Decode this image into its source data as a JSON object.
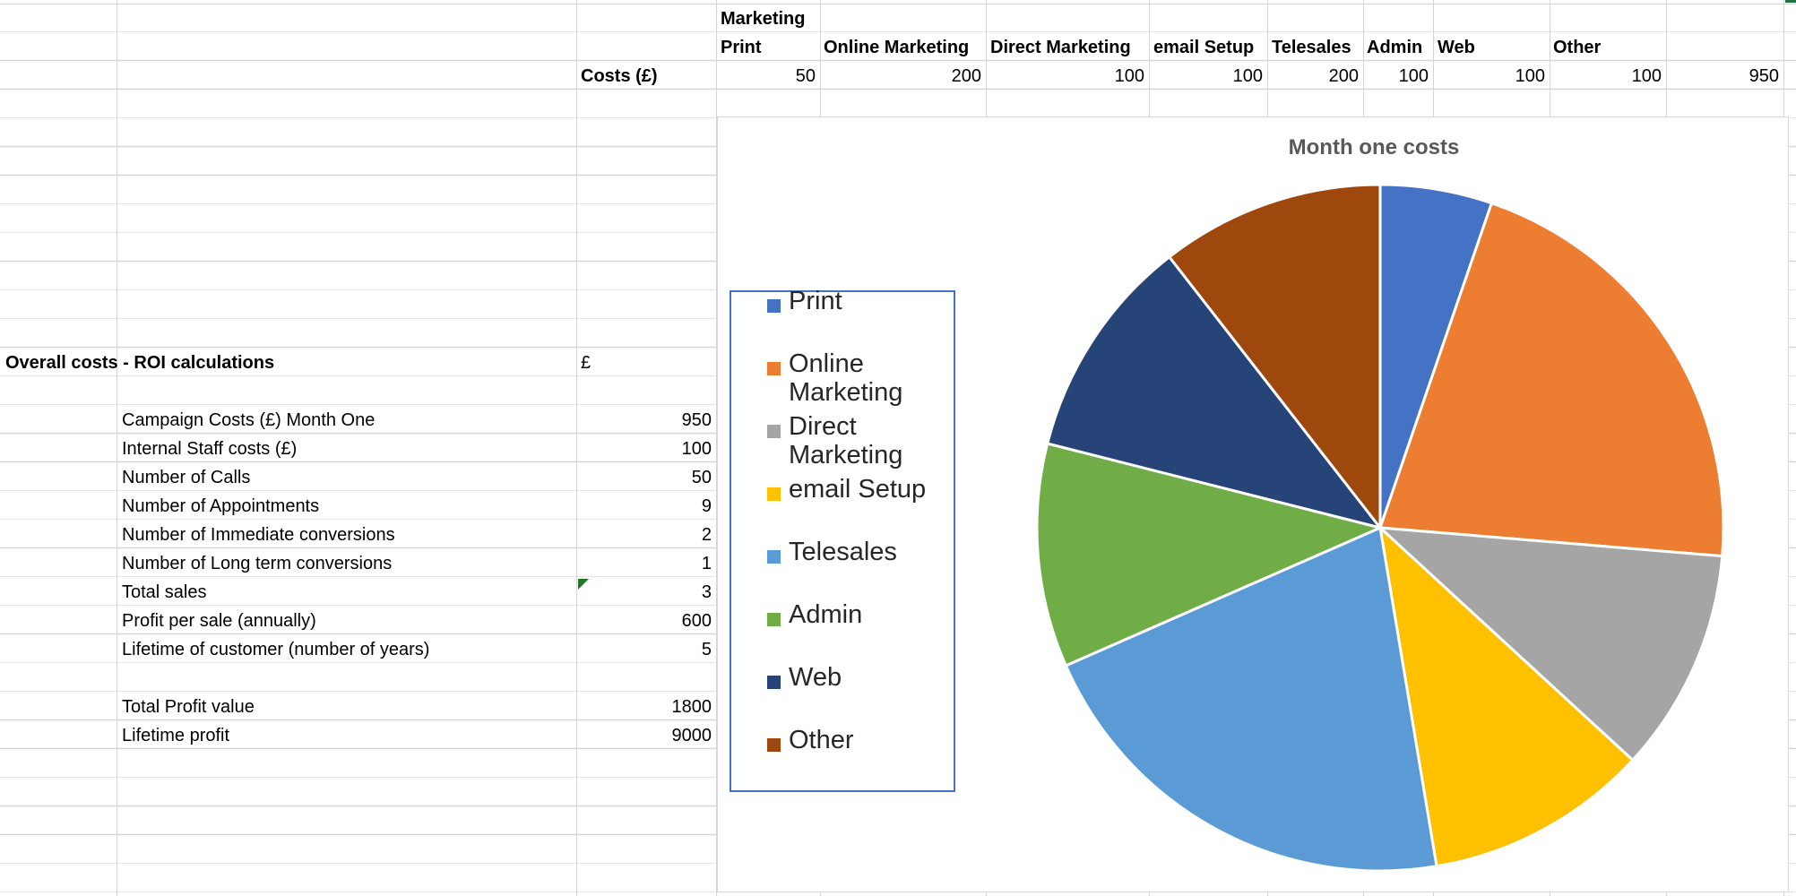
{
  "header": {
    "marketing": "Marketing",
    "categories": [
      "Print",
      "Online Marketing",
      "Direct Marketing",
      "email Setup",
      "Telesales",
      "Admin",
      "Web",
      "Other"
    ],
    "costs_label": "Costs (£)",
    "cost_values": [
      "50",
      "200",
      "100",
      "100",
      "200",
      "100",
      "100",
      "100"
    ],
    "total": "950"
  },
  "roi": {
    "title": "Overall costs - ROI calculations",
    "currency": "£",
    "rows": [
      {
        "label": "Campaign Costs (£) Month One",
        "value": "950"
      },
      {
        "label": "Internal Staff costs (£)",
        "value": "100"
      },
      {
        "label": "Number of Calls",
        "value": "50"
      },
      {
        "label": "Number of Appointments",
        "value": "9"
      },
      {
        "label": "Number of Immediate conversions",
        "value": "2"
      },
      {
        "label": "Number of Long term conversions",
        "value": "1"
      },
      {
        "label": "Total sales",
        "value": "3"
      },
      {
        "label": "Profit per sale (annually)",
        "value": "600"
      },
      {
        "label": "Lifetime of customer (number of years)",
        "value": "5"
      }
    ],
    "totals": [
      {
        "label": "Total Profit value",
        "value": "1800"
      },
      {
        "label": "Lifetime profit",
        "value": "9000"
      }
    ]
  },
  "chart_data": {
    "type": "pie",
    "title": "Month one costs",
    "categories": [
      "Print",
      "Online Marketing",
      "Direct Marketing",
      "email Setup",
      "Telesales",
      "Admin",
      "Web",
      "Other"
    ],
    "values": [
      50,
      200,
      100,
      100,
      200,
      100,
      100,
      100
    ],
    "colors": [
      "#4472c4",
      "#ed7d31",
      "#a5a5a5",
      "#ffc000",
      "#5b9bd5",
      "#70ad47",
      "#264478",
      "#9e480e"
    ],
    "legend": "left"
  }
}
